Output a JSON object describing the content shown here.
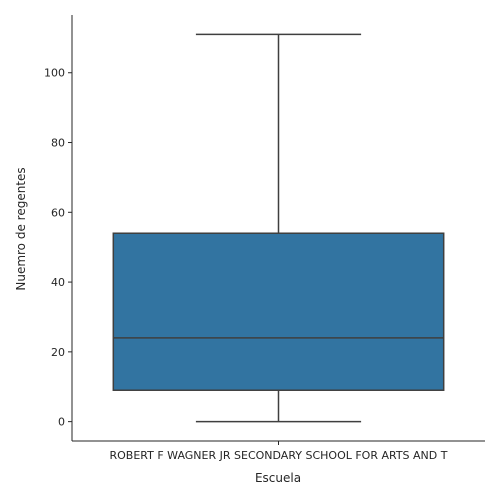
{
  "chart_data": {
    "type": "box",
    "xlabel": "Escuela",
    "ylabel": "Nuemro de regentes",
    "categories": [
      "ROBERT F WAGNER JR SECONDARY SCHOOL FOR ARTS AND T"
    ],
    "boxes": [
      {
        "category": "ROBERT F WAGNER JR SECONDARY SCHOOL FOR ARTS AND T",
        "whisker_low": 0,
        "q1": 9,
        "median": 24,
        "q3": 54,
        "whisker_high": 111
      }
    ],
    "ylim": [
      -5.55,
      116.55
    ],
    "y_ticks": [
      0,
      20,
      40,
      60,
      80,
      100
    ],
    "grid": false,
    "colors": {
      "box_fill": "#3274a1",
      "line": "#3f3f3f",
      "axis": "#262626"
    }
  }
}
